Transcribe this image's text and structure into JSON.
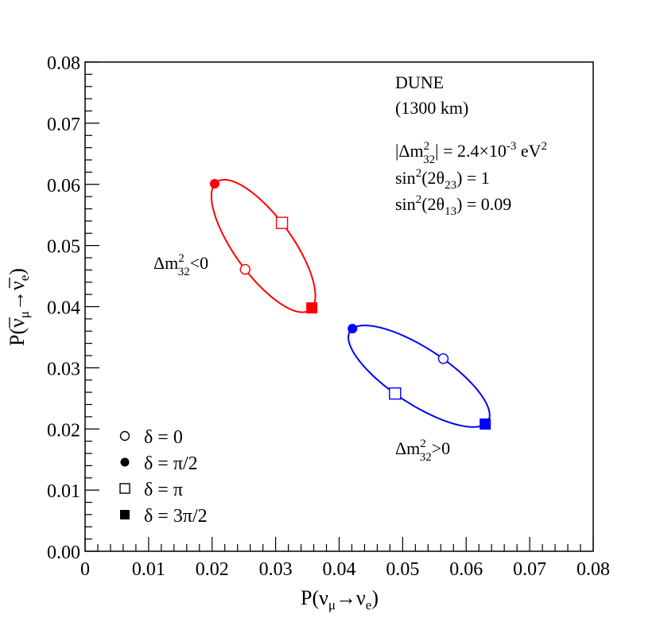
{
  "chart_data": {
    "type": "scatter",
    "title": "",
    "xlabel": {
      "base": "P(ν",
      "sub1": "μ",
      "arrow": "→ν",
      "sub2": "e",
      "close": ")"
    },
    "ylabel": {
      "base": "P(ν",
      "sub1": "μ",
      "arrow": "→ν",
      "sub2": "e",
      "close": ")"
    },
    "xlim": [
      0,
      0.08
    ],
    "ylim": [
      0,
      0.08
    ],
    "x_ticks": [
      "0",
      "0.01",
      "0.02",
      "0.03",
      "0.04",
      "0.05",
      "0.06",
      "0.07",
      "0.08"
    ],
    "y_ticks": [
      "0.00",
      "0.01",
      "0.02",
      "0.03",
      "0.04",
      "0.05",
      "0.06",
      "0.07",
      "0.08"
    ],
    "grid": false,
    "info_box": {
      "experiment": "DUNE",
      "baseline": "(1300 km)",
      "dm_prefix": "|Δm",
      "dm_sup": "2",
      "dm_sub": "32",
      "dm_rest": "| = 2.4×10",
      "dm_exp": "-3",
      "dm_unit": " eV",
      "dm_unit_sup": "2",
      "s23_pre": "sin",
      "s23_sup": "2",
      "s23_mid": "(2θ",
      "s23_sub": "23",
      "s23_rest": ") = 1",
      "s13_pre": "sin",
      "s13_sup": "2",
      "s13_mid": "(2θ",
      "s13_sub": "13",
      "s13_rest": ") = 0.09"
    },
    "legend": {
      "placement": "bottom-left",
      "entries": [
        {
          "marker": "open-circle",
          "label": "δ = 0"
        },
        {
          "marker": "filled-circle",
          "label": "δ = π/2"
        },
        {
          "marker": "open-square",
          "label": "δ = π"
        },
        {
          "marker": "filled-square",
          "label": "δ = 3π/2"
        }
      ]
    },
    "series": [
      {
        "hierarchy": "inverted",
        "color": "#ff0000",
        "label_base": "Δm",
        "label_sup": "2",
        "label_sub": "32",
        "label_rel": "<0",
        "points": [
          {
            "delta": "0",
            "marker": "open-circle",
            "x": 0.0252,
            "y": 0.0461
          },
          {
            "delta": "π/2",
            "marker": "filled-circle",
            "x": 0.0204,
            "y": 0.0601
          },
          {
            "delta": "π",
            "marker": "open-square",
            "x": 0.031,
            "y": 0.0537
          },
          {
            "delta": "3π/2",
            "marker": "filled-square",
            "x": 0.0357,
            "y": 0.0398
          }
        ]
      },
      {
        "hierarchy": "normal",
        "color": "#0000ff",
        "label_base": "Δm",
        "label_sup": "2",
        "label_sub": "32",
        "label_rel": ">0",
        "points": [
          {
            "delta": "0",
            "marker": "open-circle",
            "x": 0.0564,
            "y": 0.0315
          },
          {
            "delta": "π/2",
            "marker": "filled-circle",
            "x": 0.0421,
            "y": 0.0364
          },
          {
            "delta": "π",
            "marker": "open-square",
            "x": 0.0488,
            "y": 0.0258
          },
          {
            "delta": "3π/2",
            "marker": "filled-square",
            "x": 0.063,
            "y": 0.0208
          }
        ]
      }
    ]
  }
}
